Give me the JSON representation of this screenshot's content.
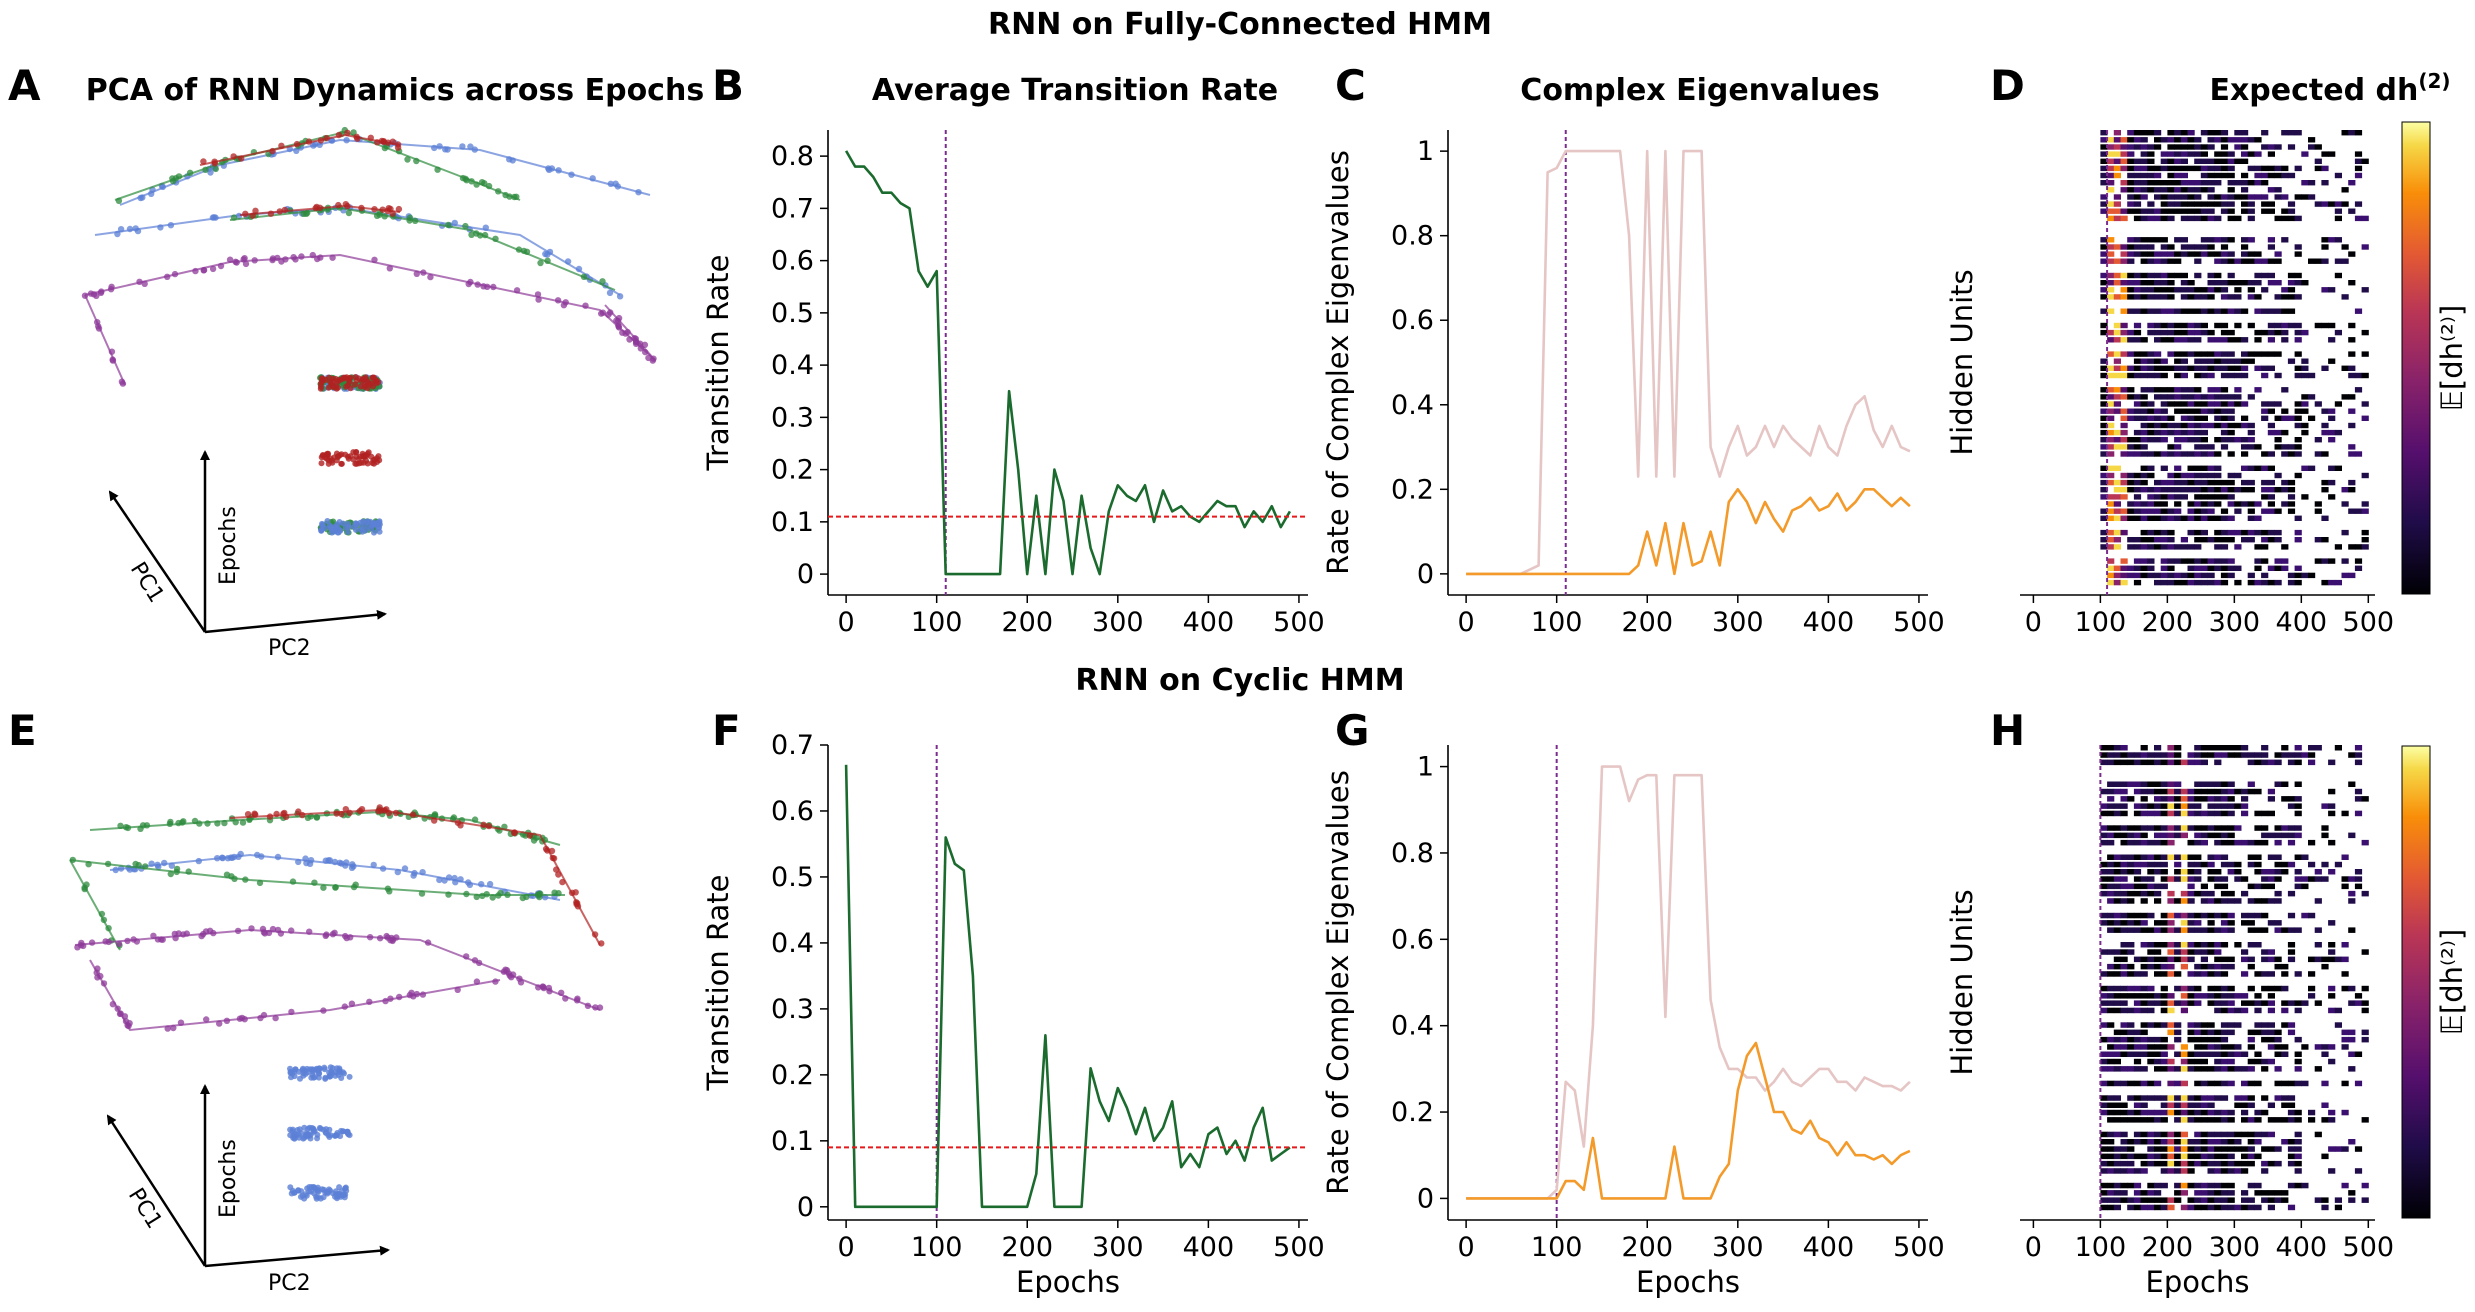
{
  "row_titles": [
    "RNN on Fully-Connected HMM",
    "RNN on Cyclic HMM"
  ],
  "panel_letters": [
    "A",
    "B",
    "C",
    "D",
    "E",
    "F",
    "G",
    "H"
  ],
  "panel_titles": {
    "A": "PCA of RNN Dynamics across Epochs",
    "B": "Average Transition Rate",
    "C": "Complex Eigenvalues",
    "D": "Expected dh",
    "D_sup": "(2)"
  },
  "pca_axes": {
    "pc1": "PC1",
    "pc2": "PC2",
    "epochs": "Epochs"
  },
  "colorbar_label": "𝔼[dh⁽²⁾]",
  "colors": {
    "green": "#1b6b2e",
    "orange": "#f39a2a",
    "pink": "#e6c5c5",
    "purple_dash": "#7b2d8e",
    "red_dash": "#e41a1c",
    "pca_red": "#b22222",
    "pca_green": "#2e8b3d",
    "pca_blue": "#5b7fd6",
    "pca_purple": "#8e3a99"
  },
  "chart_data": [
    {
      "id": "B",
      "type": "line",
      "title": "Average Transition Rate",
      "xlabel": "",
      "ylabel": "Transition Rate",
      "xlim": [
        -20,
        510
      ],
      "ylim": [
        -0.04,
        0.85
      ],
      "xticks": [
        0,
        100,
        200,
        300,
        400,
        500
      ],
      "yticks": [
        0.0,
        0.1,
        0.2,
        0.3,
        0.4,
        0.5,
        0.6,
        0.7,
        0.8
      ],
      "vline": 110,
      "hline": 0.11,
      "series": [
        {
          "x": [
            0,
            10,
            20,
            30,
            40,
            50,
            60,
            70,
            80,
            90,
            100,
            110,
            120,
            130,
            140,
            150,
            160,
            170,
            180,
            190,
            200,
            210,
            220,
            230,
            240,
            250,
            260,
            270,
            280,
            290,
            300,
            310,
            320,
            330,
            340,
            350,
            360,
            370,
            380,
            390,
            400,
            410,
            420,
            430,
            440,
            450,
            460,
            470,
            480,
            490
          ],
          "y": [
            0.81,
            0.78,
            0.78,
            0.76,
            0.73,
            0.73,
            0.71,
            0.7,
            0.58,
            0.55,
            0.58,
            0.0,
            0.0,
            0.0,
            0.0,
            0.0,
            0.0,
            0.0,
            0.35,
            0.2,
            0.0,
            0.15,
            0.0,
            0.2,
            0.14,
            0.0,
            0.15,
            0.05,
            0.0,
            0.12,
            0.17,
            0.15,
            0.14,
            0.17,
            0.1,
            0.16,
            0.12,
            0.13,
            0.11,
            0.1,
            0.12,
            0.14,
            0.13,
            0.13,
            0.09,
            0.12,
            0.1,
            0.13,
            0.09,
            0.12
          ]
        }
      ]
    },
    {
      "id": "C",
      "type": "line",
      "title": "Complex Eigenvalues",
      "xlabel": "",
      "ylabel": "Rate of Complex Eigenvalues",
      "xlim": [
        -20,
        510
      ],
      "ylim": [
        -0.05,
        1.05
      ],
      "xticks": [
        0,
        100,
        200,
        300,
        400,
        500
      ],
      "yticks": [
        0.0,
        0.2,
        0.4,
        0.6,
        0.8,
        1.0
      ],
      "vline": 110,
      "series": [
        {
          "x": [
            0,
            20,
            40,
            60,
            80,
            90,
            100,
            110,
            120,
            140,
            160,
            170,
            180,
            190,
            200,
            210,
            220,
            230,
            240,
            250,
            260,
            270,
            280,
            290,
            300,
            310,
            320,
            330,
            340,
            350,
            360,
            370,
            380,
            390,
            400,
            410,
            420,
            430,
            440,
            450,
            460,
            470,
            480,
            490
          ],
          "y": [
            0,
            0,
            0,
            0,
            0.02,
            0.95,
            0.96,
            1.0,
            1.0,
            1.0,
            1.0,
            1.0,
            0.8,
            0.23,
            1.0,
            0.23,
            1.0,
            0.23,
            1.0,
            1.0,
            1.0,
            0.3,
            0.23,
            0.3,
            0.35,
            0.28,
            0.3,
            0.35,
            0.3,
            0.35,
            0.32,
            0.3,
            0.28,
            0.35,
            0.3,
            0.28,
            0.35,
            0.4,
            0.42,
            0.34,
            0.3,
            0.35,
            0.3,
            0.29
          ]
        },
        {
          "x": [
            0,
            20,
            40,
            60,
            80,
            100,
            110,
            120,
            140,
            160,
            180,
            190,
            200,
            210,
            220,
            230,
            240,
            250,
            260,
            270,
            280,
            290,
            300,
            310,
            320,
            330,
            340,
            350,
            360,
            370,
            380,
            390,
            400,
            410,
            420,
            430,
            440,
            450,
            460,
            470,
            480,
            490
          ],
          "y": [
            0,
            0,
            0,
            0,
            0,
            0,
            0,
            0,
            0,
            0,
            0,
            0.02,
            0.1,
            0.02,
            0.12,
            0.0,
            0.12,
            0.02,
            0.03,
            0.1,
            0.02,
            0.17,
            0.2,
            0.17,
            0.12,
            0.17,
            0.13,
            0.1,
            0.15,
            0.16,
            0.18,
            0.15,
            0.16,
            0.19,
            0.15,
            0.17,
            0.2,
            0.2,
            0.18,
            0.16,
            0.18,
            0.16
          ]
        }
      ]
    },
    {
      "id": "D",
      "type": "heatmap",
      "title": "Expected dh(2)",
      "xlabel": "",
      "ylabel": "Hidden Units",
      "xlim": [
        -20,
        510
      ],
      "xticks": [
        0,
        100,
        200,
        300,
        400,
        500
      ],
      "vline": 110,
      "colormap": "inferno",
      "colorbar": "𝔼[dh⁽²⁾]"
    },
    {
      "id": "F",
      "type": "line",
      "title": "",
      "xlabel": "Epochs",
      "ylabel": "Transition Rate",
      "xlim": [
        -20,
        510
      ],
      "ylim": [
        -0.02,
        0.7
      ],
      "xticks": [
        0,
        100,
        200,
        300,
        400,
        500
      ],
      "yticks": [
        0.0,
        0.1,
        0.2,
        0.3,
        0.4,
        0.5,
        0.6,
        0.7
      ],
      "vline": 100,
      "hline": 0.09,
      "series": [
        {
          "x": [
            0,
            10,
            20,
            40,
            60,
            80,
            90,
            100,
            110,
            120,
            130,
            140,
            150,
            160,
            170,
            180,
            190,
            200,
            210,
            220,
            230,
            240,
            250,
            260,
            270,
            280,
            290,
            300,
            310,
            320,
            330,
            340,
            350,
            360,
            370,
            380,
            390,
            400,
            410,
            420,
            430,
            440,
            450,
            460,
            470,
            480,
            490
          ],
          "y": [
            0.67,
            0.0,
            0.0,
            0.0,
            0.0,
            0.0,
            0.0,
            0.0,
            0.56,
            0.52,
            0.51,
            0.35,
            0.0,
            0.0,
            0.0,
            0.0,
            0.0,
            0.0,
            0.05,
            0.26,
            0.0,
            0.0,
            0.0,
            0.0,
            0.21,
            0.16,
            0.13,
            0.18,
            0.15,
            0.11,
            0.15,
            0.1,
            0.12,
            0.16,
            0.06,
            0.08,
            0.06,
            0.11,
            0.12,
            0.08,
            0.1,
            0.07,
            0.12,
            0.15,
            0.07,
            0.08,
            0.09
          ]
        }
      ]
    },
    {
      "id": "G",
      "type": "line",
      "title": "",
      "xlabel": "Epochs",
      "ylabel": "Rate of Complex Eigenvalues",
      "xlim": [
        -20,
        510
      ],
      "ylim": [
        -0.05,
        1.05
      ],
      "xticks": [
        0,
        100,
        200,
        300,
        400,
        500
      ],
      "yticks": [
        0.0,
        0.2,
        0.4,
        0.6,
        0.8,
        1.0
      ],
      "vline": 100,
      "series": [
        {
          "x": [
            0,
            20,
            40,
            60,
            80,
            90,
            100,
            110,
            120,
            130,
            140,
            150,
            160,
            170,
            180,
            190,
            200,
            210,
            220,
            230,
            240,
            250,
            260,
            270,
            280,
            290,
            300,
            310,
            320,
            330,
            340,
            350,
            360,
            370,
            380,
            390,
            400,
            410,
            420,
            430,
            440,
            450,
            460,
            470,
            480,
            490
          ],
          "y": [
            0,
            0,
            0,
            0,
            0,
            0,
            0.02,
            0.27,
            0.25,
            0.12,
            0.4,
            1.0,
            1.0,
            1.0,
            0.92,
            0.97,
            0.98,
            0.98,
            0.42,
            0.98,
            0.98,
            0.98,
            0.98,
            0.46,
            0.35,
            0.3,
            0.3,
            0.28,
            0.28,
            0.25,
            0.27,
            0.3,
            0.27,
            0.26,
            0.28,
            0.3,
            0.3,
            0.27,
            0.27,
            0.25,
            0.28,
            0.27,
            0.26,
            0.26,
            0.25,
            0.27
          ]
        },
        {
          "x": [
            0,
            20,
            40,
            60,
            80,
            90,
            100,
            110,
            120,
            130,
            140,
            150,
            160,
            170,
            180,
            190,
            200,
            210,
            220,
            230,
            240,
            250,
            260,
            270,
            280,
            290,
            300,
            310,
            320,
            330,
            340,
            350,
            360,
            370,
            380,
            390,
            400,
            410,
            420,
            430,
            440,
            450,
            460,
            470,
            480,
            490
          ],
          "y": [
            0,
            0,
            0,
            0,
            0,
            0,
            0,
            0.04,
            0.04,
            0.02,
            0.14,
            0.0,
            0.0,
            0.0,
            0.0,
            0.0,
            0.0,
            0.0,
            0.0,
            0.12,
            0.0,
            0.0,
            0.0,
            0.0,
            0.05,
            0.08,
            0.25,
            0.33,
            0.36,
            0.28,
            0.2,
            0.2,
            0.16,
            0.15,
            0.18,
            0.14,
            0.13,
            0.1,
            0.13,
            0.1,
            0.1,
            0.09,
            0.1,
            0.08,
            0.1,
            0.11
          ]
        }
      ]
    },
    {
      "id": "H",
      "type": "heatmap",
      "title": "",
      "xlabel": "Epochs",
      "ylabel": "Hidden Units",
      "xlim": [
        -20,
        510
      ],
      "xticks": [
        0,
        100,
        200,
        300,
        400,
        500
      ],
      "vline": 100,
      "colormap": "inferno",
      "colorbar": "𝔼[dh⁽²⁾]"
    }
  ]
}
